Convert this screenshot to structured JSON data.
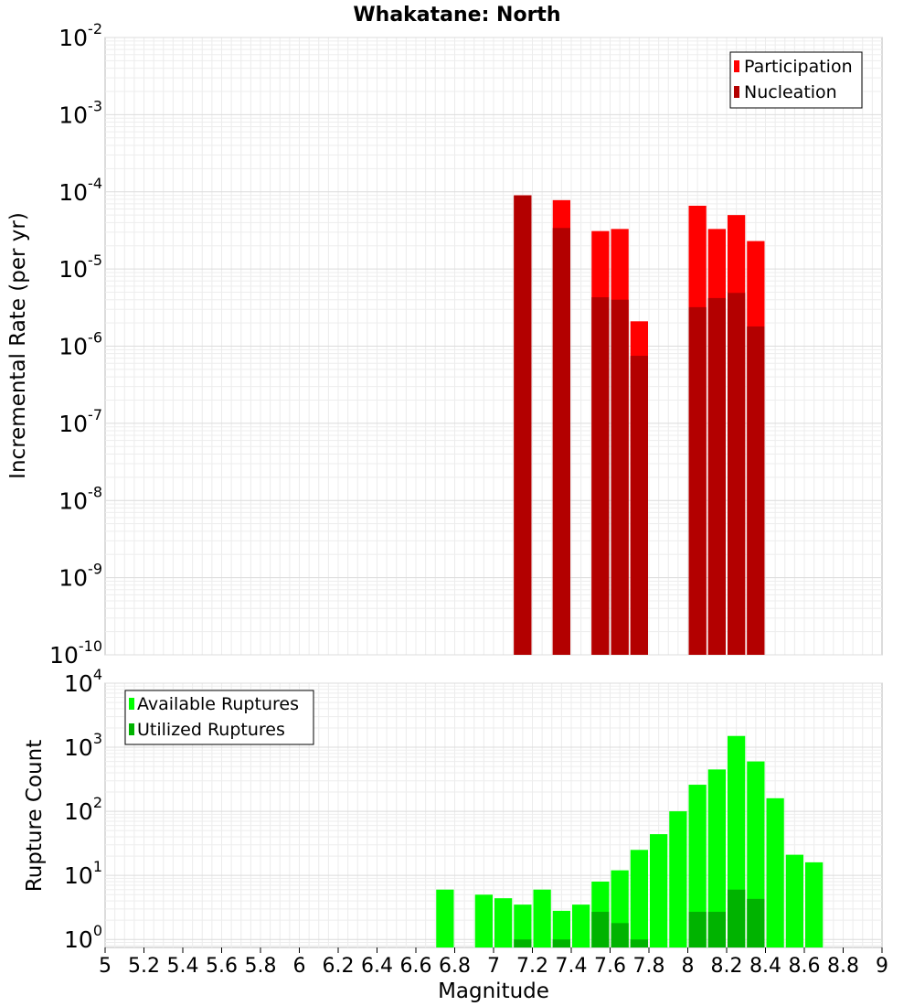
{
  "chart_data": [
    {
      "type": "bar",
      "title": "Whakatane: North",
      "ylabel": "Incremental Rate (per yr)",
      "xlabel": "",
      "yscale": "log",
      "ylim": [
        1e-10,
        0.01
      ],
      "xlim": [
        5,
        9
      ],
      "bar_width": 0.1,
      "y_ticks": [
        {
          "base": "10",
          "exp": "-2"
        },
        {
          "base": "10",
          "exp": "-3"
        },
        {
          "base": "10",
          "exp": "-4"
        },
        {
          "base": "10",
          "exp": "-5"
        },
        {
          "base": "10",
          "exp": "-6"
        },
        {
          "base": "10",
          "exp": "-7"
        },
        {
          "base": "10",
          "exp": "-8"
        },
        {
          "base": "10",
          "exp": "-9"
        },
        {
          "base": "10",
          "exp": "-10"
        }
      ],
      "legend_position": "top-right",
      "series": [
        {
          "name": "Participation",
          "color": "#ff0000",
          "x": [
            7.15,
            7.35,
            7.55,
            7.65,
            7.75,
            8.05,
            8.15,
            8.25,
            8.35
          ],
          "values": [
            9e-05,
            7.8e-05,
            3.1e-05,
            3.3e-05,
            2.1e-06,
            6.6e-05,
            3.3e-05,
            5e-05,
            2.3e-05
          ]
        },
        {
          "name": "Nucleation",
          "color": "#b30000",
          "x": [
            7.15,
            7.35,
            7.55,
            7.65,
            7.75,
            8.05,
            8.15,
            8.25,
            8.35
          ],
          "values": [
            9e-05,
            3.4e-05,
            4.3e-06,
            4e-06,
            7.5e-07,
            3.2e-06,
            4.2e-06,
            4.9e-06,
            1.8e-06
          ]
        }
      ]
    },
    {
      "type": "bar",
      "title": "",
      "ylabel": "Rupture Count",
      "xlabel": "Magnitude",
      "yscale": "log",
      "ylim": [
        0.75,
        10000
      ],
      "xlim": [
        5,
        9
      ],
      "bar_width": 0.1,
      "x_ticks": [
        "5",
        "5.2",
        "5.4",
        "5.6",
        "5.8",
        "6",
        "6.2",
        "6.4",
        "6.6",
        "6.8",
        "7",
        "7.2",
        "7.4",
        "7.6",
        "7.8",
        "8",
        "8.2",
        "8.4",
        "8.6",
        "8.8",
        "9"
      ],
      "y_ticks": [
        {
          "base": "10",
          "exp": "4"
        },
        {
          "base": "10",
          "exp": "3"
        },
        {
          "base": "10",
          "exp": "2"
        },
        {
          "base": "10",
          "exp": "1"
        },
        {
          "base": "10",
          "exp": "0"
        }
      ],
      "legend_position": "top-left",
      "series": [
        {
          "name": "Available Ruptures",
          "color": "#00ff00",
          "x": [
            6.75,
            6.95,
            7.05,
            7.15,
            7.25,
            7.35,
            7.45,
            7.55,
            7.65,
            7.75,
            7.85,
            7.95,
            8.05,
            8.15,
            8.25,
            8.35,
            8.45,
            8.55,
            8.65
          ],
          "values": [
            6,
            5,
            4.4,
            3.5,
            6,
            2.8,
            3.5,
            8,
            12,
            25,
            44,
            100,
            260,
            450,
            1500,
            600,
            160,
            21,
            16
          ]
        },
        {
          "name": "Utilized Ruptures",
          "color": "#00b300",
          "x": [
            7.15,
            7.35,
            7.55,
            7.65,
            7.75,
            8.05,
            8.15,
            8.25,
            8.35
          ],
          "values": [
            1,
            1,
            2.7,
            1.8,
            1,
            2.7,
            2.7,
            6,
            4.3
          ]
        }
      ]
    }
  ]
}
